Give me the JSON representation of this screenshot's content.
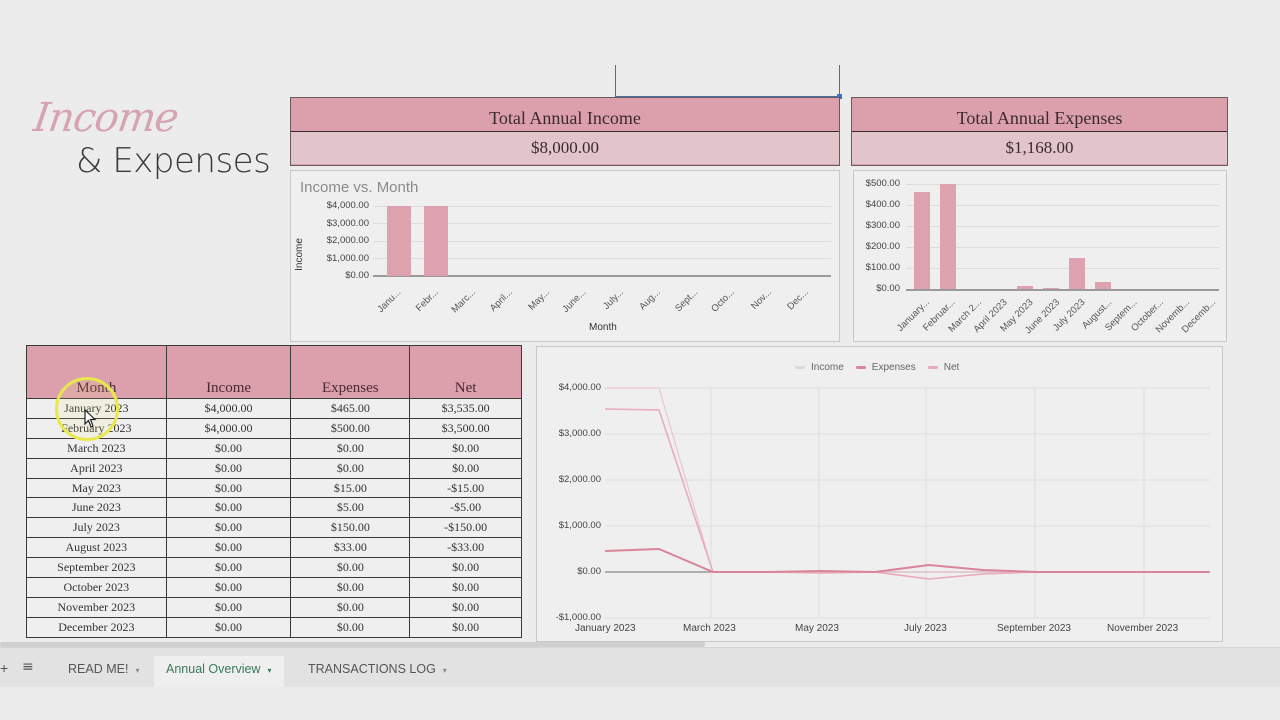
{
  "logo": {
    "script": "Income",
    "main": "& Expenses"
  },
  "summary": {
    "income_title": "Total Annual Income",
    "income_value": "$8,000.00",
    "expenses_title": "Total Annual Expenses",
    "expenses_value": "$1,168.00"
  },
  "colors": {
    "accent_pink": "#dca0ad",
    "pink_light": "#e2c5cb",
    "active_tab": "#3a7a55",
    "line_income": "#e8c6cf",
    "line_expenses": "#d9849a",
    "line_net": "#e6aab8"
  },
  "table": {
    "headers": [
      "Month",
      "Income",
      "Expenses",
      "Net"
    ],
    "rows": [
      [
        "January 2023",
        "$4,000.00",
        "$465.00",
        "$3,535.00"
      ],
      [
        "February 2023",
        "$4,000.00",
        "$500.00",
        "$3,500.00"
      ],
      [
        "March 2023",
        "$0.00",
        "$0.00",
        "$0.00"
      ],
      [
        "April 2023",
        "$0.00",
        "$0.00",
        "$0.00"
      ],
      [
        "May 2023",
        "$0.00",
        "$15.00",
        "-$15.00"
      ],
      [
        "June 2023",
        "$0.00",
        "$5.00",
        "-$5.00"
      ],
      [
        "July 2023",
        "$0.00",
        "$150.00",
        "-$150.00"
      ],
      [
        "August 2023",
        "$0.00",
        "$33.00",
        "-$33.00"
      ],
      [
        "September 2023",
        "$0.00",
        "$0.00",
        "$0.00"
      ],
      [
        "October 2023",
        "$0.00",
        "$0.00",
        "$0.00"
      ],
      [
        "November 2023",
        "$0.00",
        "$0.00",
        "$0.00"
      ],
      [
        "December 2023",
        "$0.00",
        "$0.00",
        "$0.00"
      ]
    ]
  },
  "chart_data": [
    {
      "type": "bar",
      "title": "Income vs. Month",
      "xlabel": "Month",
      "ylabel": "Income",
      "categories": [
        "Janu...",
        "Febr...",
        "Marc...",
        "April...",
        "May...",
        "June...",
        "July...",
        "Aug...",
        "Sept...",
        "Octo...",
        "Nov...",
        "Dec..."
      ],
      "values": [
        4000,
        4000,
        0,
        0,
        0,
        0,
        0,
        0,
        0,
        0,
        0,
        0
      ],
      "yticks": [
        "$4,000.00",
        "$3,000.00",
        "$2,000.00",
        "$1,000.00",
        "$0.00"
      ],
      "ylim": [
        0,
        4000
      ],
      "grid": true
    },
    {
      "type": "bar",
      "title": "",
      "xlabel": "",
      "ylabel": "",
      "categories": [
        "January...",
        "Februar...",
        "March 2...",
        "April 2023",
        "May 2023",
        "June 2023",
        "July 2023",
        "August...",
        "Septem...",
        "October...",
        "Novemb...",
        "Decemb..."
      ],
      "values": [
        465,
        500,
        0,
        0,
        15,
        5,
        150,
        33,
        0,
        0,
        0,
        0
      ],
      "yticks": [
        "$500.00",
        "$400.00",
        "$300.00",
        "$200.00",
        "$100.00",
        "$0.00"
      ],
      "ylim": [
        0,
        500
      ],
      "grid": true
    },
    {
      "type": "line",
      "title": "",
      "legend": [
        "Income",
        "Expenses",
        "Net"
      ],
      "legend_position": "top",
      "x": [
        "January 2023",
        "February 2023",
        "March 2023",
        "April 2023",
        "May 2023",
        "June 2023",
        "July 2023",
        "August 2023",
        "September 2023",
        "October 2023",
        "November 2023",
        "December 2023"
      ],
      "xticks": [
        "January 2023",
        "March 2023",
        "May 2023",
        "July 2023",
        "September 2023",
        "November 2023"
      ],
      "yticks": [
        "$4,000.00",
        "$3,000.00",
        "$2,000.00",
        "$1,000.00",
        "$0.00",
        "-$1,000.00"
      ],
      "ylim": [
        -1000,
        4000
      ],
      "series": [
        {
          "name": "Income",
          "values": [
            4000,
            4000,
            0,
            0,
            0,
            0,
            0,
            0,
            0,
            0,
            0,
            0
          ]
        },
        {
          "name": "Expenses",
          "values": [
            465,
            500,
            0,
            0,
            15,
            5,
            150,
            33,
            0,
            0,
            0,
            0
          ]
        },
        {
          "name": "Net",
          "values": [
            3535,
            3500,
            0,
            0,
            -15,
            -5,
            -150,
            -33,
            0,
            0,
            0,
            0
          ]
        }
      ],
      "grid": true
    }
  ],
  "tabs": {
    "add_icon": "+",
    "menu_icon": "≡",
    "items": [
      {
        "label": "READ ME!",
        "active": false
      },
      {
        "label": "Annual Overview",
        "active": true
      },
      {
        "label": "TRANSACTIONS LOG",
        "active": false
      }
    ],
    "caret": "▾"
  }
}
